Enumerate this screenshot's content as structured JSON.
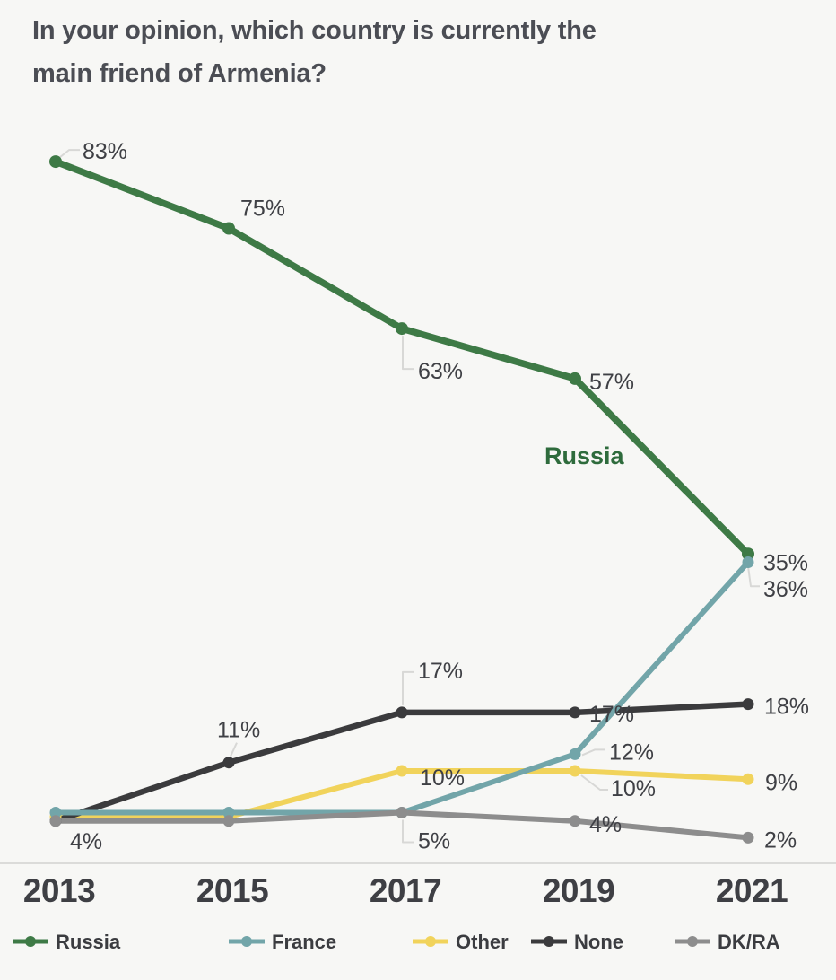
{
  "title": "In your opinion, which country is currently the\nmain friend of Armenia?",
  "chart_data": {
    "type": "line",
    "x": [
      "2013",
      "2015",
      "2017",
      "2019",
      "2021"
    ],
    "series": [
      {
        "name": "Russia",
        "color": "#3E7A46",
        "values": [
          83,
          75,
          63,
          57,
          36
        ],
        "point_labels": [
          "83%",
          "75%",
          "63%",
          "57%",
          "36%"
        ]
      },
      {
        "name": "France",
        "color": "#72A5A9",
        "values": [
          5,
          5,
          5,
          12,
          35
        ],
        "point_labels": [
          null,
          null,
          "5%",
          "12%",
          "35%"
        ]
      },
      {
        "name": "Other",
        "color": "#F1D35B",
        "values": [
          4.5,
          4.5,
          10,
          10,
          9
        ],
        "point_labels": [
          null,
          null,
          "10%",
          "10%",
          "9%"
        ]
      },
      {
        "name": "None",
        "color": "#3B3B3D",
        "values": [
          4,
          11,
          17,
          17,
          18
        ],
        "point_labels": [
          "4%",
          "11%",
          "17%",
          "17%",
          "18%"
        ]
      },
      {
        "name": "DK/RA",
        "color": "#8D8D8D",
        "values": [
          4,
          4,
          5,
          4,
          2
        ],
        "point_labels": [
          null,
          null,
          null,
          "4%",
          "2%"
        ]
      }
    ],
    "annotation": {
      "text": "Russia",
      "color": "#2E6B3C"
    },
    "ylim": [
      0,
      90
    ],
    "grid": false,
    "legend_position": "bottom"
  },
  "colors": {
    "background": "#F7F7F5",
    "title_text": "#4B4D54",
    "data_label_text": "#3F4045",
    "tick_text": "#3E3F44",
    "axis_line": "#DBDBD9",
    "leader_line": "#D8D8D6"
  }
}
